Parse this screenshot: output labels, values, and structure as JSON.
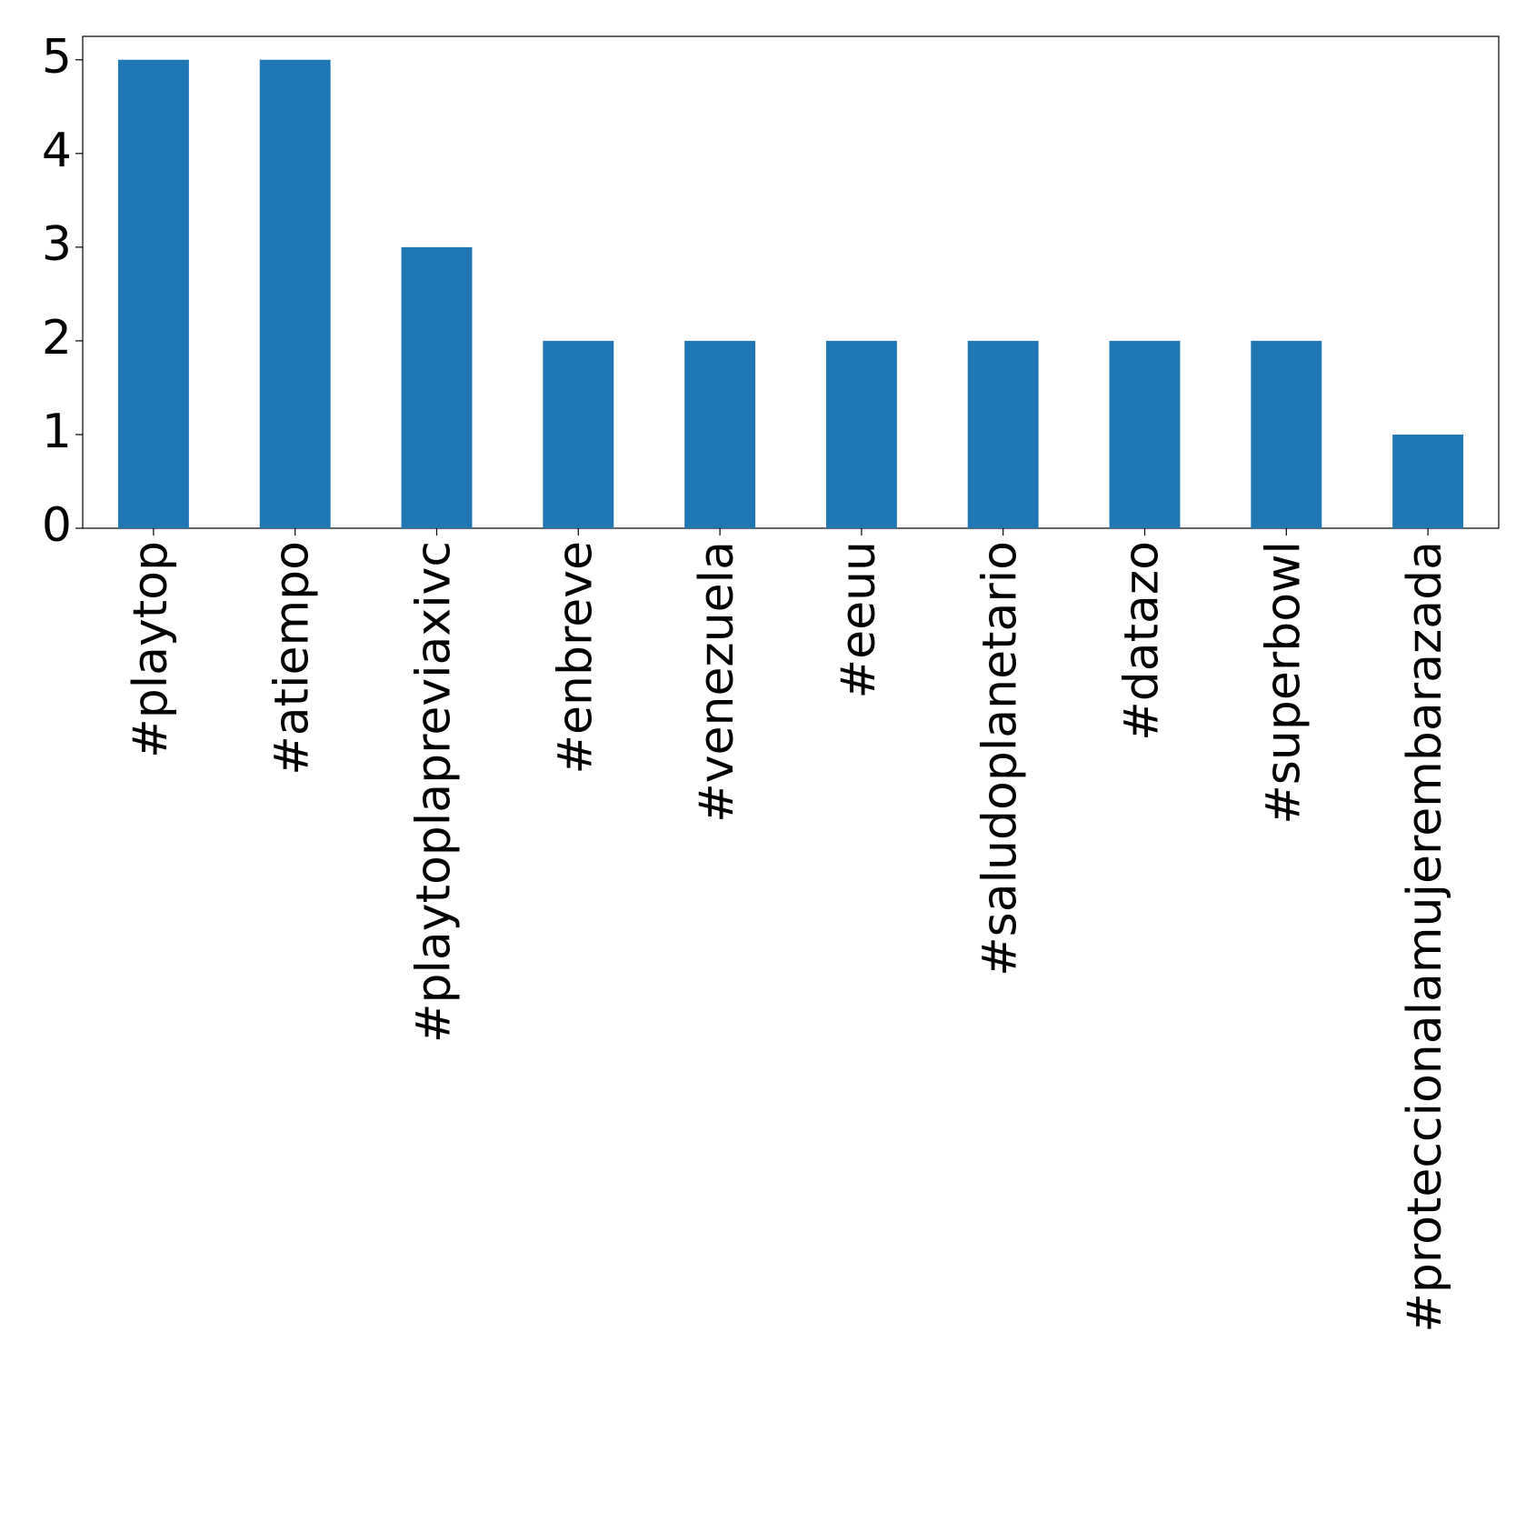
{
  "chart_data": {
    "type": "bar",
    "categories": [
      "#playtop",
      "#atiempo",
      "#playtoplapreviaxivc",
      "#enbreve",
      "#venezuela",
      "#eeuu",
      "#saludoplanetario",
      "#datazo",
      "#superbowl",
      "#proteccionalamujerembarazada"
    ],
    "values": [
      5,
      5,
      3,
      2,
      2,
      2,
      2,
      2,
      2,
      1
    ],
    "color": "#1f77b4",
    "ylim": [
      0,
      5.25
    ],
    "yticks": [
      0,
      1,
      2,
      3,
      4,
      5
    ],
    "grid": false
  }
}
